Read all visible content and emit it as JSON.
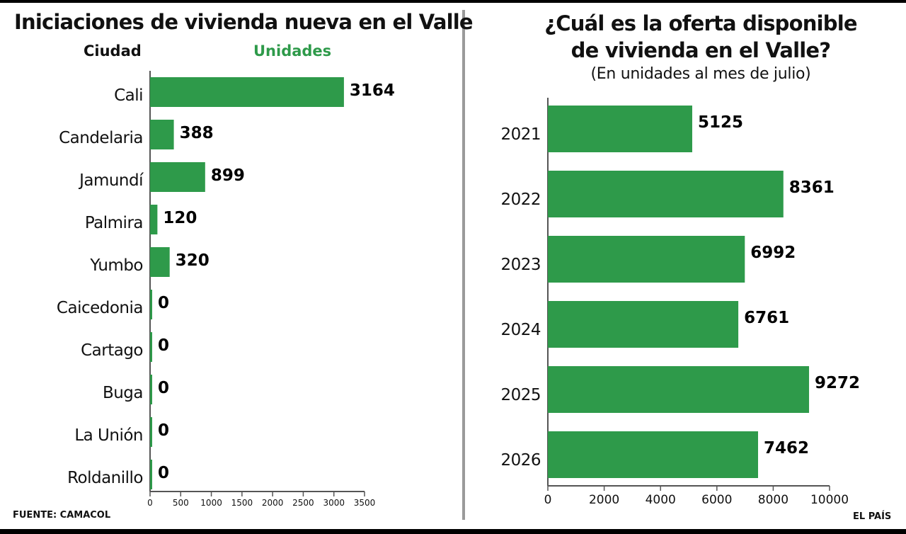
{
  "left_panel": {
    "title": "Iniciaciones de vivienda nueva en el Valle",
    "column_city": "Ciudad",
    "column_units": "Unidades"
  },
  "right_panel": {
    "title_line1": "¿Cuál es la oferta disponible",
    "title_line2": "de vivienda en el Valle?",
    "subtitle": "(En unidades al mes de julio)"
  },
  "footer": {
    "source": "FUENTE: CAMACOL",
    "brand": "EL PAÍS"
  },
  "colors": {
    "bar": "#2e9a4a",
    "units_header": "#2e9a4a",
    "axis": "#555555"
  },
  "chart_data": [
    {
      "type": "bar",
      "orientation": "horizontal",
      "title": "Iniciaciones de vivienda nueva en el Valle",
      "categories": [
        "Cali",
        "Candelaria",
        "Jamundí",
        "Palmira",
        "Yumbo",
        "Caicedonia",
        "Cartago",
        "Buga",
        "La Unión",
        "Roldanillo"
      ],
      "values": [
        3164,
        388,
        899,
        120,
        320,
        0,
        0,
        0,
        0,
        0
      ],
      "xlim": [
        0,
        3500
      ],
      "xticks": [
        0,
        500,
        1000,
        1500,
        2000,
        2500,
        3000,
        3500
      ],
      "grid": false
    },
    {
      "type": "bar",
      "orientation": "horizontal",
      "title": "¿Cuál es la oferta disponible de vivienda en el Valle?",
      "subtitle": "(En unidades al mes de julio)",
      "categories": [
        "2021",
        "2022",
        "2023",
        "2024",
        "2025",
        "2026"
      ],
      "values": [
        5125,
        8361,
        6992,
        6761,
        9272,
        7462
      ],
      "xlim": [
        0,
        10000
      ],
      "xticks": [
        0,
        2000,
        4000,
        6000,
        8000,
        10000
      ],
      "grid": false
    }
  ]
}
